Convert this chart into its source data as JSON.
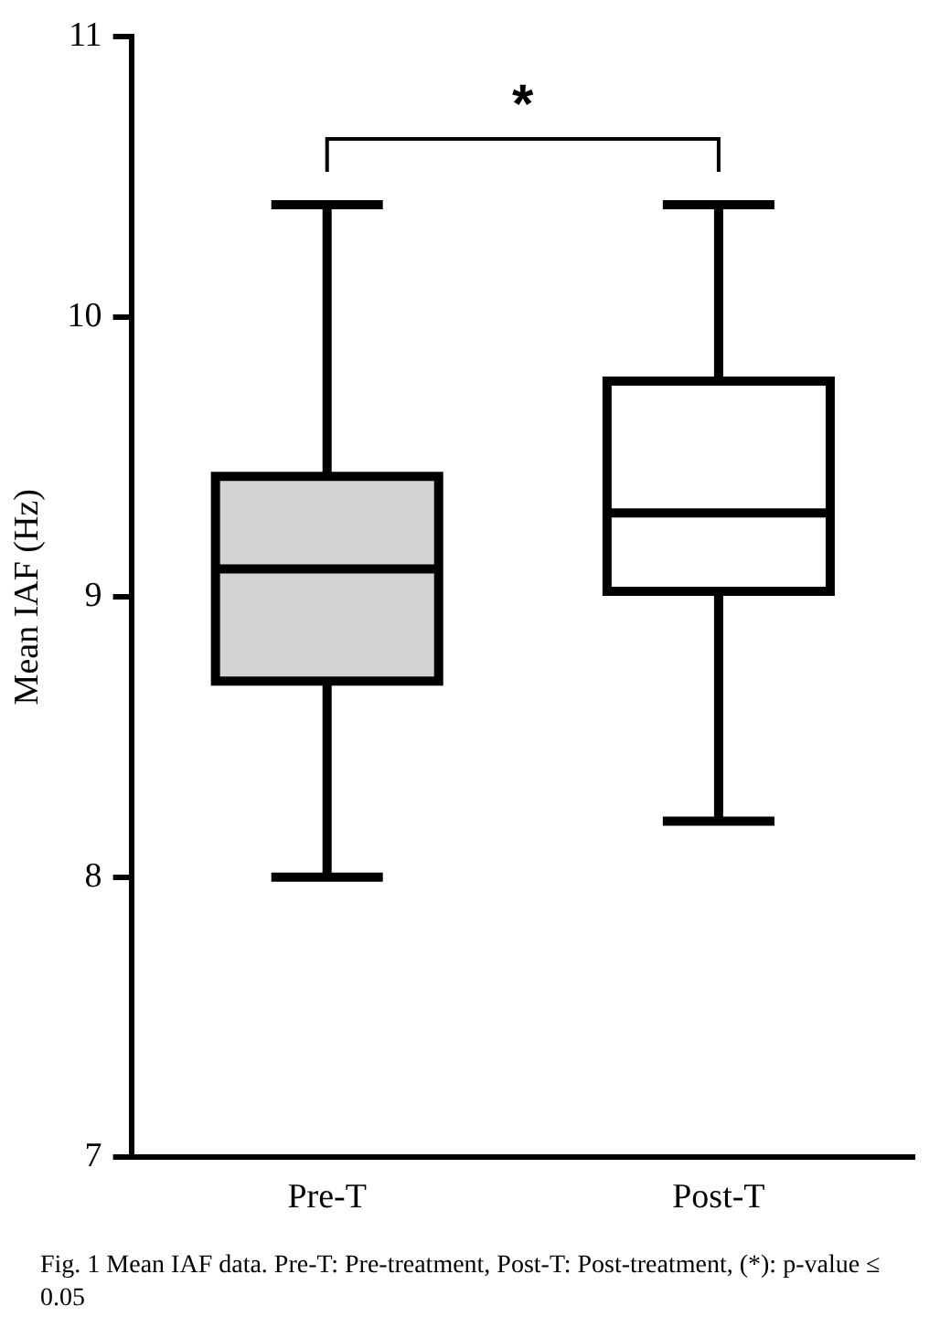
{
  "chart_data": {
    "type": "box",
    "ylabel": "Mean IAF (Hz)",
    "categories": [
      "Pre-T",
      "Post-T"
    ],
    "boxes": [
      {
        "low": 8.0,
        "q1": 8.7,
        "median": 9.1,
        "q3": 9.43,
        "high": 10.4
      },
      {
        "low": 8.2,
        "q1": 9.02,
        "median": 9.3,
        "q3": 9.77,
        "high": 10.4
      }
    ],
    "colors": [
      "#d3d3d3",
      "#ffffff"
    ],
    "ylim": [
      7,
      11
    ],
    "yticks": [
      7,
      8,
      9,
      10,
      11
    ],
    "grid": false,
    "legend": false,
    "annotations": [
      "*",
      "Fig. 1 Mean IAF data. Pre-T: Pre-treatment, Post-T: Post-treatment, (*): p-value ≤ 0.05"
    ]
  }
}
